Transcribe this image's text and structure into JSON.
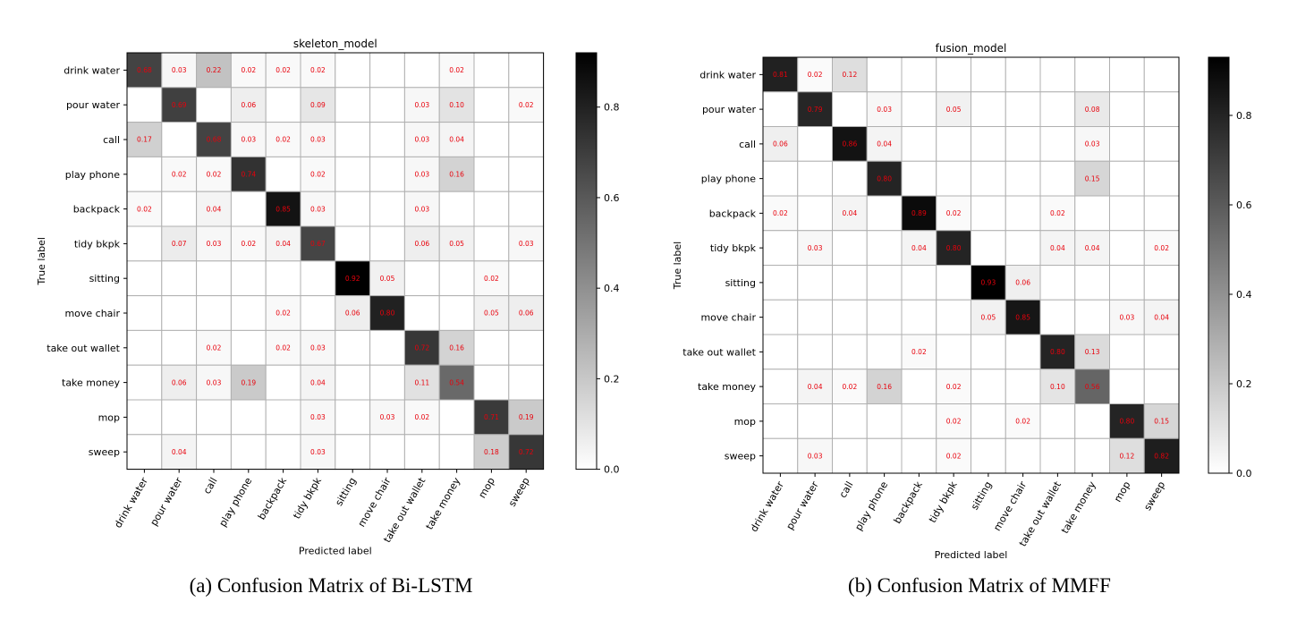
{
  "chart_data": [
    {
      "type": "heatmap",
      "title": "skeleton_model",
      "xlabel": "Predicted label",
      "ylabel": "True label",
      "caption": "(a) Confusion Matrix of Bi-LSTM",
      "labels": [
        "drink water",
        "pour water",
        "call",
        "play phone",
        "backpack",
        "tidy bkpk",
        "sitting",
        "move chair",
        "take out wallet",
        "take money",
        "mop",
        "sweep"
      ],
      "colorbar": {
        "range": [
          0.0,
          0.92
        ],
        "ticks": [
          "0.0",
          "0.2",
          "0.4",
          "0.6",
          "0.8"
        ],
        "tick_values": [
          0,
          0.2,
          0.4,
          0.6,
          0.8
        ]
      },
      "values": [
        [
          0.68,
          0.03,
          0.22,
          0.02,
          0.02,
          0.02,
          null,
          null,
          null,
          0.02,
          null,
          null
        ],
        [
          null,
          0.69,
          null,
          0.06,
          null,
          0.09,
          null,
          null,
          0.03,
          0.1,
          null,
          0.02
        ],
        [
          0.17,
          null,
          0.68,
          0.03,
          0.02,
          0.03,
          null,
          null,
          0.03,
          0.04,
          null,
          null
        ],
        [
          null,
          0.02,
          0.02,
          0.74,
          null,
          0.02,
          null,
          null,
          0.03,
          0.16,
          null,
          null
        ],
        [
          0.02,
          null,
          0.04,
          null,
          0.85,
          0.03,
          null,
          null,
          0.03,
          null,
          null,
          null
        ],
        [
          null,
          0.07,
          0.03,
          0.02,
          0.04,
          0.67,
          null,
          null,
          0.06,
          0.05,
          null,
          0.03
        ],
        [
          null,
          null,
          null,
          null,
          null,
          null,
          0.92,
          0.05,
          null,
          null,
          0.02,
          null
        ],
        [
          null,
          null,
          null,
          null,
          0.02,
          null,
          0.06,
          0.8,
          null,
          null,
          0.05,
          0.06
        ],
        [
          null,
          null,
          0.02,
          null,
          0.02,
          0.03,
          null,
          null,
          0.72,
          0.16,
          null,
          null
        ],
        [
          null,
          0.06,
          0.03,
          0.19,
          null,
          0.04,
          null,
          null,
          0.11,
          0.54,
          null,
          null
        ],
        [
          null,
          null,
          null,
          null,
          null,
          0.03,
          null,
          0.03,
          0.02,
          null,
          0.71,
          0.19
        ],
        [
          null,
          0.04,
          null,
          null,
          null,
          0.03,
          null,
          null,
          null,
          null,
          0.18,
          0.72
        ]
      ]
    },
    {
      "type": "heatmap",
      "title": "fusion_model",
      "xlabel": "Predicted label",
      "ylabel": "True label",
      "caption": "(b) Confusion Matrix of MMFF",
      "labels": [
        "drink water",
        "pour water",
        "call",
        "play phone",
        "backpack",
        "tidy bkpk",
        "sitting",
        "move chair",
        "take out wallet",
        "take money",
        "mop",
        "sweep"
      ],
      "colorbar": {
        "range": [
          0.0,
          0.93
        ],
        "ticks": [
          "0.0",
          "0.2",
          "0.4",
          "0.6",
          "0.8"
        ],
        "tick_values": [
          0,
          0.2,
          0.4,
          0.6,
          0.8
        ]
      },
      "values": [
        [
          0.81,
          0.02,
          0.12,
          null,
          null,
          null,
          null,
          null,
          null,
          null,
          null,
          null
        ],
        [
          null,
          0.79,
          null,
          0.03,
          null,
          0.05,
          null,
          null,
          null,
          0.08,
          null,
          null
        ],
        [
          0.06,
          null,
          0.86,
          0.04,
          null,
          null,
          null,
          null,
          null,
          0.03,
          null,
          null
        ],
        [
          null,
          null,
          null,
          0.8,
          null,
          null,
          null,
          null,
          null,
          0.15,
          null,
          null
        ],
        [
          0.02,
          null,
          0.04,
          null,
          0.89,
          0.02,
          null,
          null,
          0.02,
          null,
          null,
          null
        ],
        [
          null,
          0.03,
          null,
          null,
          0.04,
          0.8,
          null,
          null,
          0.04,
          0.04,
          null,
          0.02
        ],
        [
          null,
          null,
          null,
          null,
          null,
          null,
          0.93,
          0.06,
          null,
          null,
          null,
          null
        ],
        [
          null,
          null,
          null,
          null,
          null,
          null,
          0.05,
          0.85,
          null,
          null,
          0.03,
          0.04
        ],
        [
          null,
          null,
          null,
          null,
          0.02,
          null,
          null,
          null,
          0.8,
          0.13,
          null,
          null
        ],
        [
          null,
          0.04,
          0.02,
          0.16,
          null,
          0.02,
          null,
          null,
          0.1,
          0.56,
          null,
          null
        ],
        [
          null,
          null,
          null,
          null,
          null,
          0.02,
          null,
          0.02,
          null,
          null,
          0.8,
          0.15
        ],
        [
          null,
          0.03,
          null,
          null,
          null,
          0.02,
          null,
          null,
          null,
          null,
          0.12,
          0.82
        ]
      ]
    }
  ]
}
